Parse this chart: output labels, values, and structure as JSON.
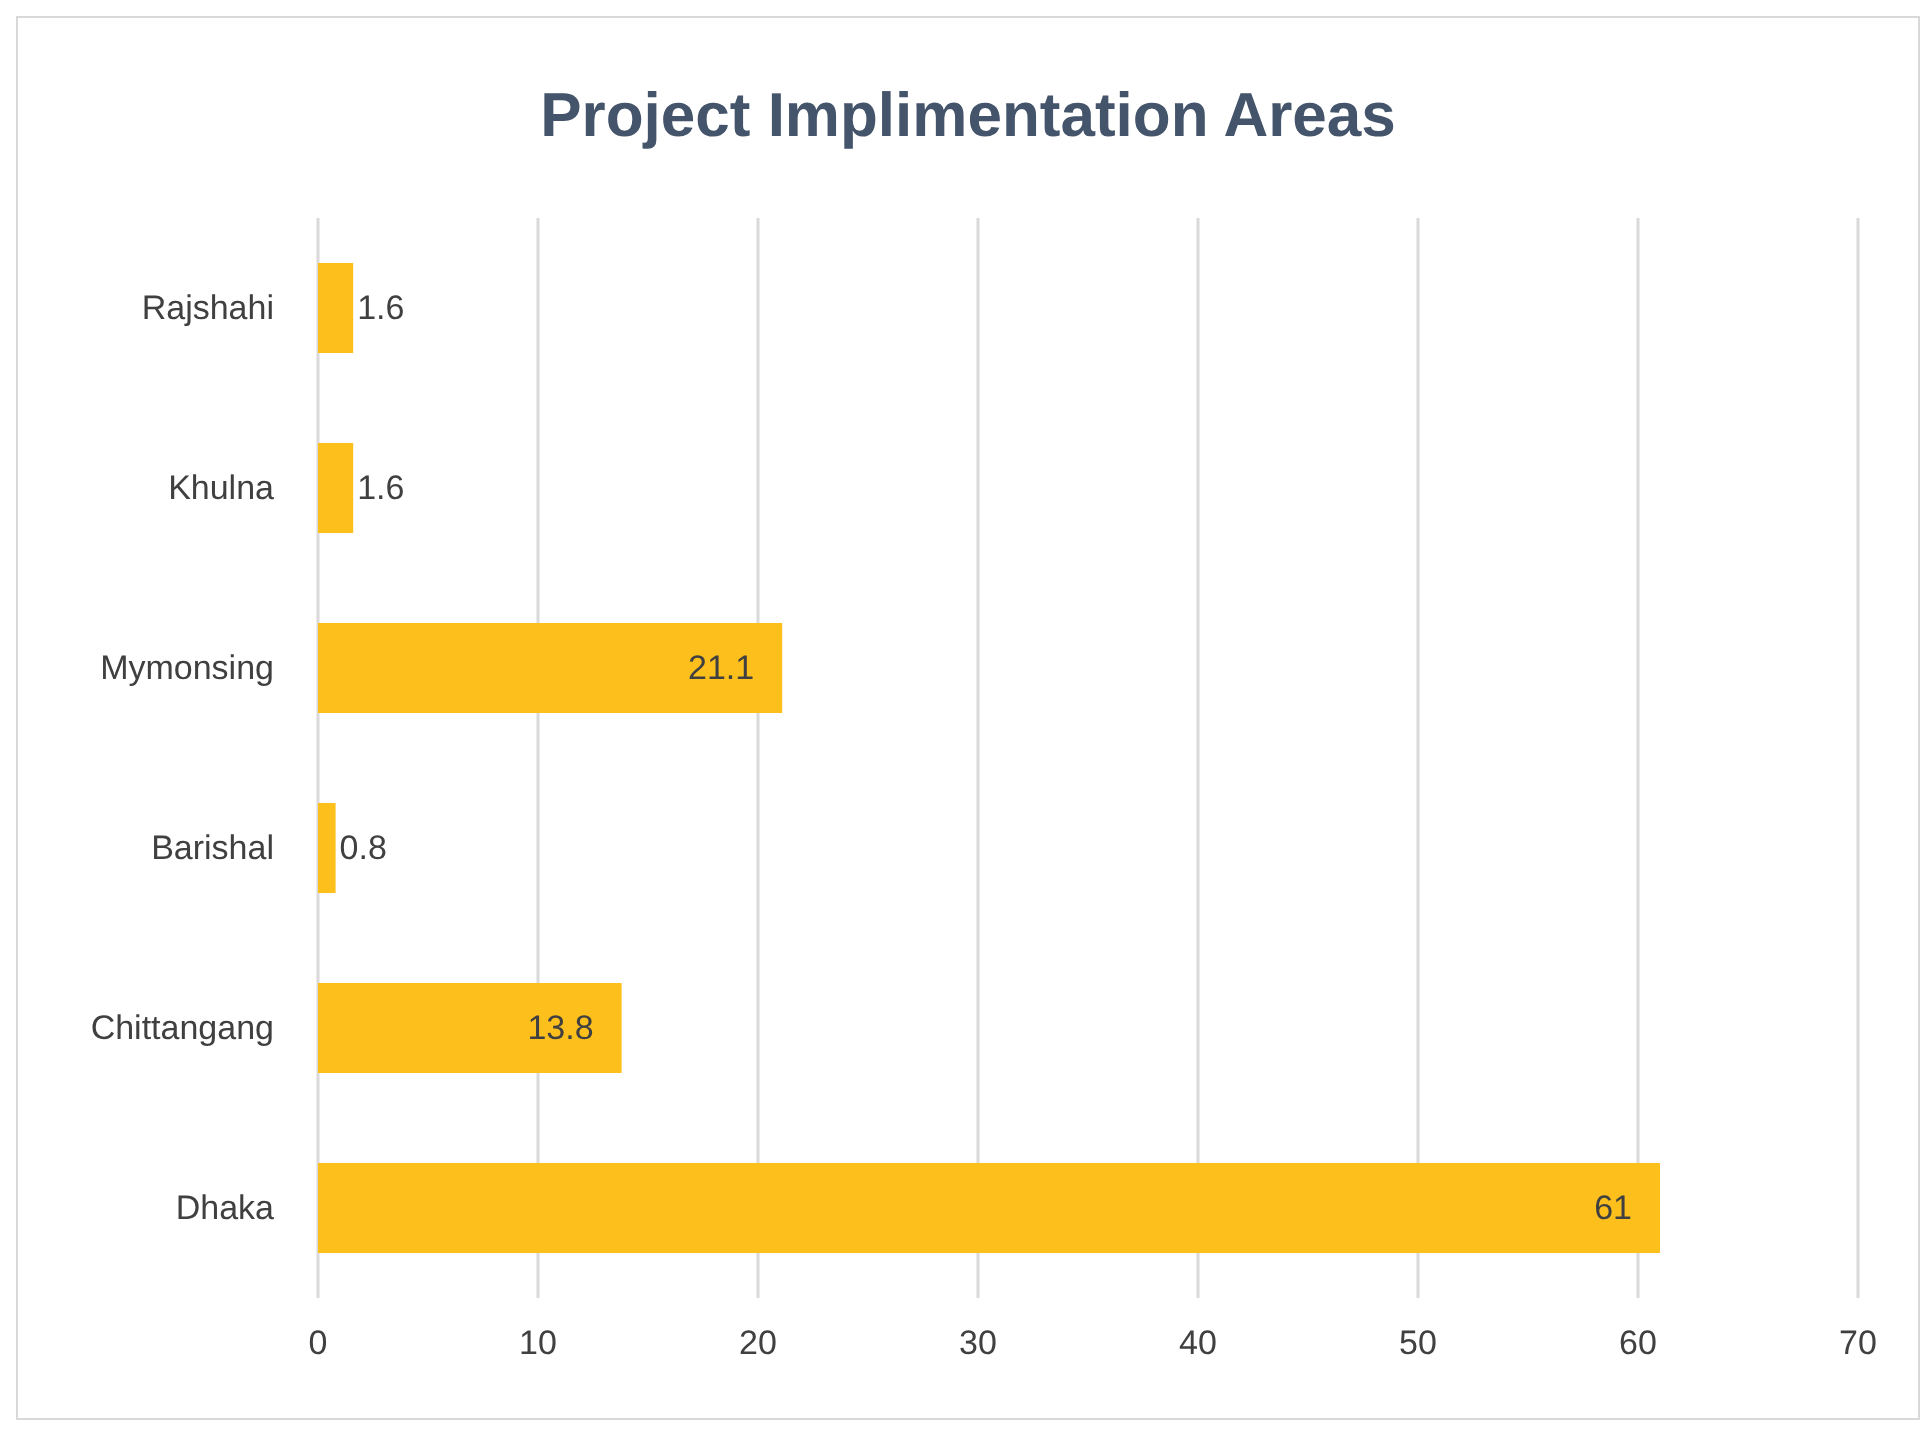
{
  "chart_data": {
    "type": "bar",
    "orientation": "horizontal",
    "title": "Project Implimentation Areas",
    "categories": [
      "Rajshahi",
      "Khulna",
      "Mymonsing",
      "Barishal",
      "Chittangang",
      "Dhaka"
    ],
    "values": [
      1.6,
      1.6,
      21.1,
      0.8,
      13.8,
      61
    ],
    "color": "#fcbf1c",
    "xlim": [
      0,
      70
    ],
    "xticks": [
      0,
      10,
      20,
      30,
      40,
      50,
      60,
      70
    ],
    "grid": "x",
    "data_labels": true
  }
}
